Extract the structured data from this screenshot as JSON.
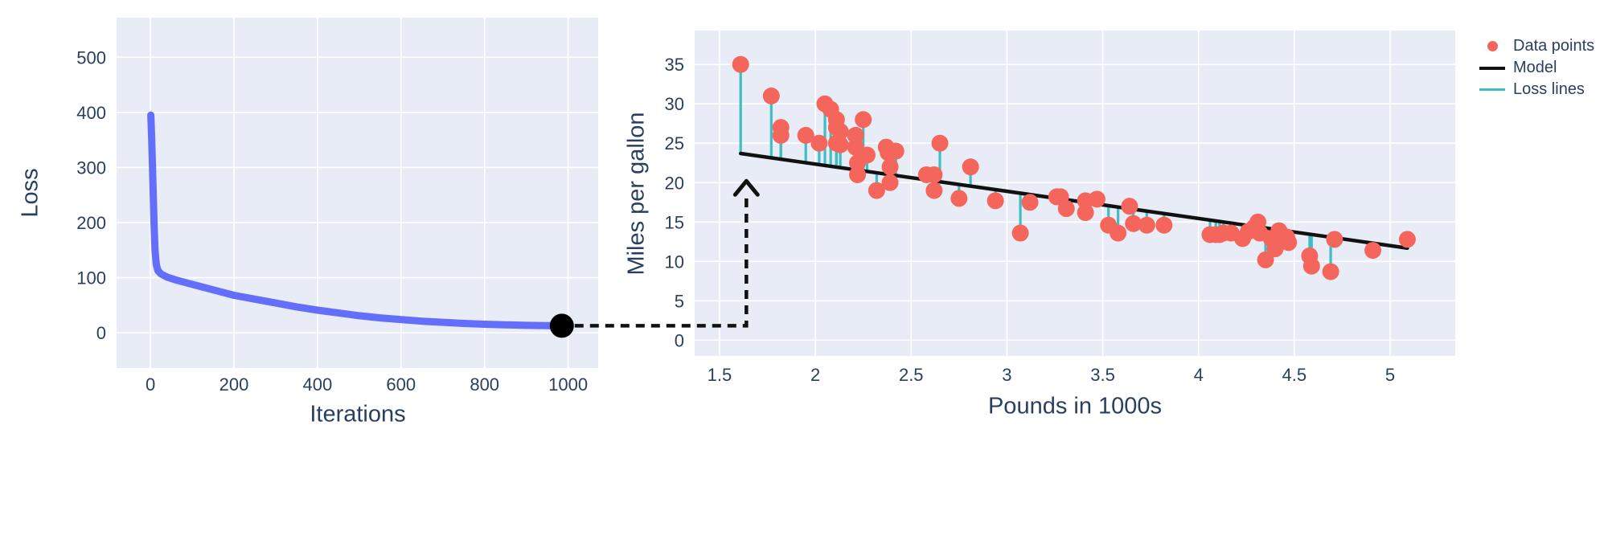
{
  "page": {
    "background": "#ffffff",
    "plot_background": "#e8ecf6",
    "grid_color": "#ffffff",
    "font_color": "#2a3f5f"
  },
  "legend": {
    "position": "top-right",
    "items": [
      {
        "label": "Data points",
        "type": "marker",
        "color": "#f4655c"
      },
      {
        "label": "Model",
        "type": "line",
        "color": "#111111"
      },
      {
        "label": "Loss lines",
        "type": "line",
        "color": "#3fbdc5"
      }
    ]
  },
  "connector": {
    "description": "dashed arrow from final loss value to the fitted model line",
    "style": "dashed",
    "color": "#111111",
    "from": {
      "iterations": 985,
      "loss": 12.7
    },
    "elbow": {
      "pounds": 1.64
    },
    "tip": {
      "pounds": 1.64,
      "mpg": 20.2
    }
  },
  "chart_data": [
    {
      "id": "loss-curve",
      "type": "line",
      "title": "",
      "xlabel": "Iterations",
      "ylabel": "Loss",
      "xlim": [
        -81,
        1072
      ],
      "ylim": [
        -64,
        572
      ],
      "xticks": [
        0,
        200,
        400,
        600,
        800,
        1000
      ],
      "xtick_labels": [
        "0",
        "200",
        "400",
        "600",
        "800",
        "1000"
      ],
      "yticks": [
        0,
        100,
        200,
        300,
        400,
        500
      ],
      "ytick_labels": [
        "0",
        "100",
        "200",
        "300",
        "400",
        "500"
      ],
      "grid": true,
      "line_color": "#636efa",
      "line_width": 9,
      "points": [
        [
          1,
          395
        ],
        [
          3,
          355
        ],
        [
          5,
          300
        ],
        [
          7,
          245
        ],
        [
          9,
          190
        ],
        [
          11,
          150
        ],
        [
          14,
          124
        ],
        [
          18,
          113
        ],
        [
          25,
          107
        ],
        [
          40,
          101
        ],
        [
          60,
          96
        ],
        [
          100,
          88
        ],
        [
          150,
          78
        ],
        [
          200,
          68
        ],
        [
          250,
          61
        ],
        [
          300,
          54
        ],
        [
          350,
          47
        ],
        [
          400,
          41
        ],
        [
          450,
          36
        ],
        [
          500,
          31
        ],
        [
          550,
          27
        ],
        [
          600,
          24
        ],
        [
          650,
          21
        ],
        [
          700,
          19
        ],
        [
          750,
          17
        ],
        [
          800,
          15.5
        ],
        [
          850,
          14.5
        ],
        [
          900,
          13.5
        ],
        [
          950,
          13
        ],
        [
          985,
          12.7
        ]
      ],
      "end_marker": {
        "x": 985,
        "y": 12.7,
        "color": "#000000",
        "radius": 15
      }
    },
    {
      "id": "model-fit",
      "type": "scatter",
      "title": "",
      "xlabel": "Pounds in 1000s",
      "ylabel": "Miles per gallon",
      "xlim": [
        1.37,
        5.34
      ],
      "ylim": [
        -2,
        39.3
      ],
      "xticks": [
        1.5,
        2,
        2.5,
        3,
        3.5,
        4,
        4.5,
        5
      ],
      "xtick_labels": [
        "1.5",
        "2",
        "2.5",
        "3",
        "3.5",
        "4",
        "4.5",
        "5"
      ],
      "yticks": [
        0,
        5,
        10,
        15,
        20,
        25,
        30,
        35
      ],
      "ytick_labels": [
        "0",
        "5",
        "10",
        "15",
        "20",
        "25",
        "30",
        "35"
      ],
      "grid": true,
      "point_color": "#f4655c",
      "point_radius": 10.5,
      "loss_line_color": "#3fbdc5",
      "loss_line_width": 3.2,
      "model_color": "#111111",
      "model_width": 4.5,
      "model": {
        "slope": -3.45,
        "intercept": 29.25,
        "x_start": 1.61,
        "x_end": 5.09
      },
      "points": [
        [
          1.61,
          35
        ],
        [
          1.77,
          31
        ],
        [
          1.82,
          27
        ],
        [
          1.82,
          26
        ],
        [
          1.95,
          26
        ],
        [
          2.05,
          30
        ],
        [
          2.08,
          29.3
        ],
        [
          2.11,
          28
        ],
        [
          2.11,
          27
        ],
        [
          2.13,
          26.5
        ],
        [
          2.02,
          25
        ],
        [
          2.11,
          25
        ],
        [
          2.13,
          24.8
        ],
        [
          2.21,
          26
        ],
        [
          2.25,
          28
        ],
        [
          2.21,
          24.5
        ],
        [
          2.22,
          22.5
        ],
        [
          2.22,
          21
        ],
        [
          2.27,
          23.5
        ],
        [
          2.32,
          19
        ],
        [
          2.37,
          24.5
        ],
        [
          2.38,
          23.8
        ],
        [
          2.39,
          22
        ],
        [
          2.39,
          20
        ],
        [
          2.42,
          24
        ],
        [
          2.58,
          21
        ],
        [
          2.62,
          21
        ],
        [
          2.62,
          19
        ],
        [
          2.65,
          25
        ],
        [
          2.75,
          18
        ],
        [
          2.81,
          22
        ],
        [
          2.94,
          17.7
        ],
        [
          3.07,
          13.6
        ],
        [
          3.12,
          17.5
        ],
        [
          3.26,
          18.2
        ],
        [
          3.28,
          18.2
        ],
        [
          3.31,
          16.7
        ],
        [
          3.41,
          17.7
        ],
        [
          3.41,
          16.2
        ],
        [
          3.47,
          17.9
        ],
        [
          3.53,
          14.6
        ],
        [
          3.58,
          13.6
        ],
        [
          3.64,
          17
        ],
        [
          3.66,
          14.8
        ],
        [
          3.73,
          14.6
        ],
        [
          3.82,
          14.6
        ],
        [
          4.06,
          13.4
        ],
        [
          4.09,
          13.4
        ],
        [
          4.11,
          13.4
        ],
        [
          4.13,
          13.6
        ],
        [
          4.17,
          13.6
        ],
        [
          4.23,
          12.9
        ],
        [
          4.26,
          13.8
        ],
        [
          4.29,
          14.3
        ],
        [
          4.31,
          15
        ],
        [
          4.32,
          13.6
        ],
        [
          4.35,
          10.2
        ],
        [
          4.38,
          12.9
        ],
        [
          4.4,
          12.6
        ],
        [
          4.42,
          13.9
        ],
        [
          4.42,
          12.4
        ],
        [
          4.4,
          11.6
        ],
        [
          4.46,
          13.1
        ],
        [
          4.47,
          12.4
        ],
        [
          4.58,
          10.7
        ],
        [
          4.59,
          9.4
        ],
        [
          4.69,
          8.7
        ],
        [
          4.71,
          12.8
        ],
        [
          4.91,
          11.4
        ],
        [
          5.09,
          12.8
        ]
      ]
    }
  ]
}
